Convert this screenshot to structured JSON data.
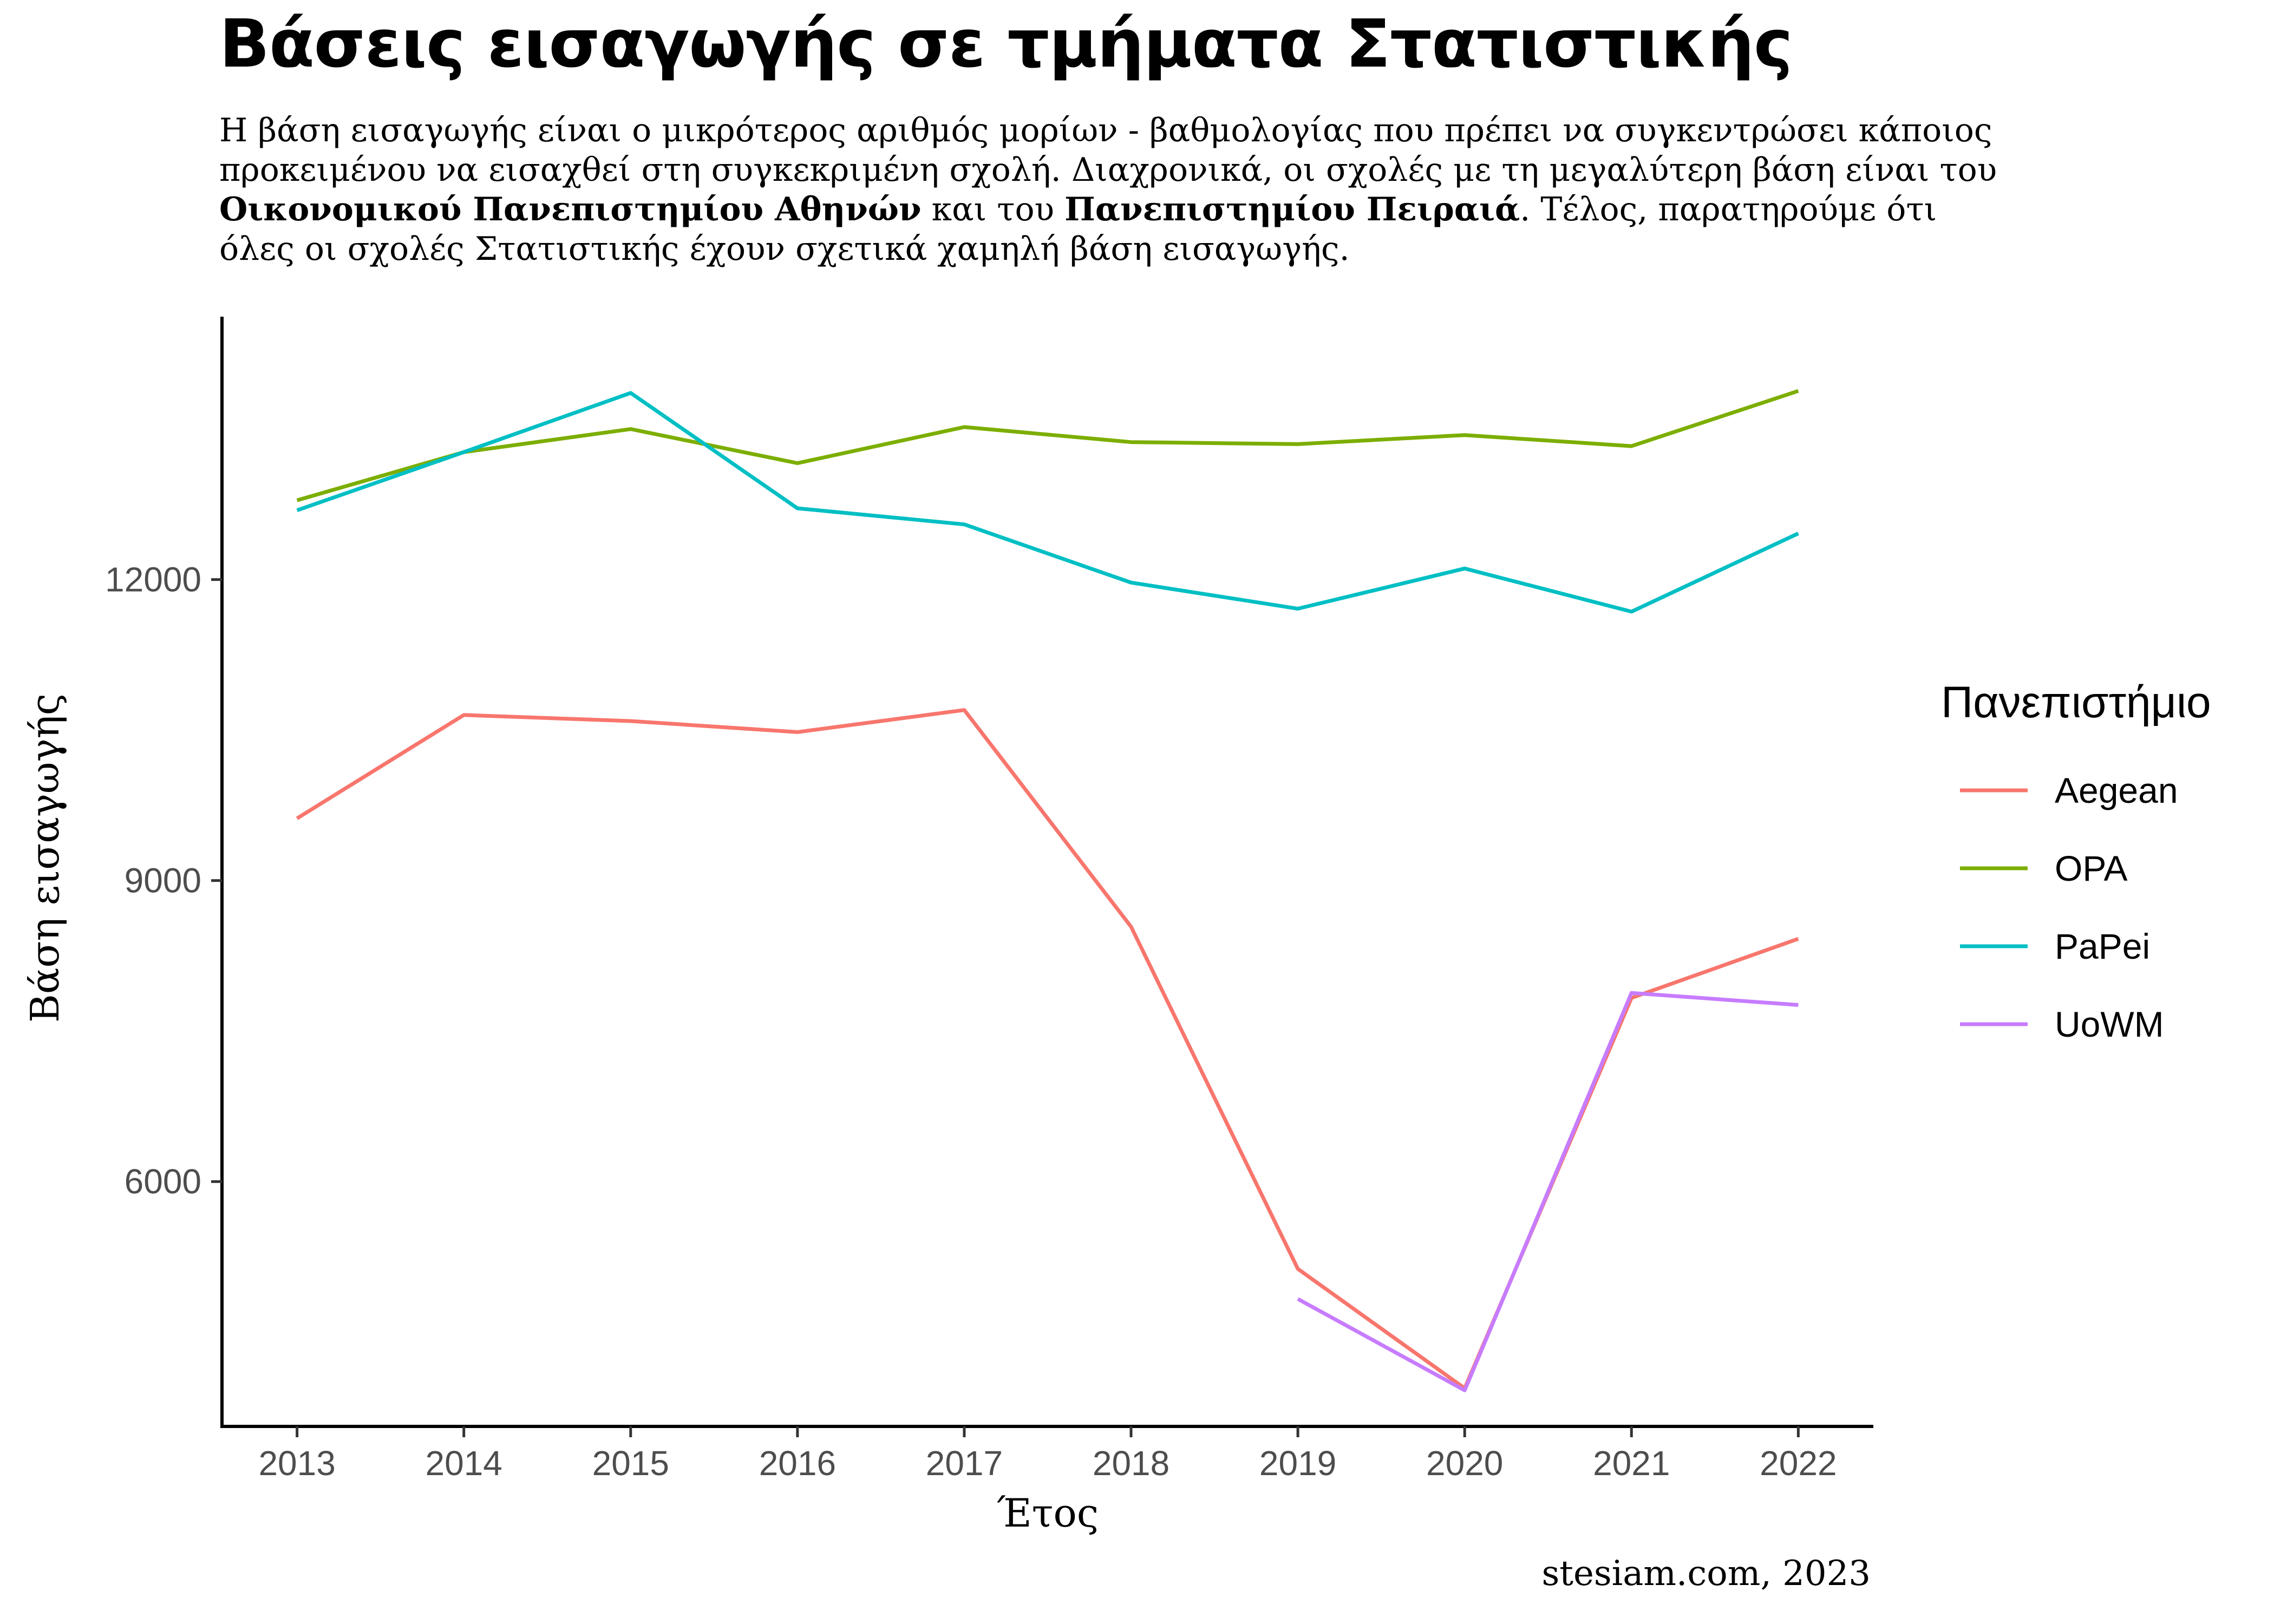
{
  "title": "Βάσεις εισαγωγής σε τμήματα Στατιστικής",
  "subtitle": {
    "part1": "Η βάση εισαγωγής είναι ο μικρότερος αριθμός μορίων - βαθμολογίας που πρέπει να συγκεντρώσει κάποιος προκειμένου να εισαχθεί στη συγκεκριμένη σχολή. Διαχρονικά, οι σχολές με τη μεγαλύτερη βάση είναι του ",
    "bold1": "Οικονομικού Πανεπιστημίου Αθηνών",
    "part2": " και του ",
    "bold2": "Πανεπιστημίου Πειραιά",
    "part3": ". Τέλος, παρατηρούμε ότι όλες οι σχολές Στατιστικής έχουν σχετικά χαμηλή βάση εισαγωγής."
  },
  "caption": "stesiam.com, 2023",
  "chart_data": {
    "type": "line",
    "xlabel": "Έτος",
    "ylabel": "Βάση εισαγωγής",
    "x": [
      2013,
      2014,
      2015,
      2016,
      2017,
      2018,
      2019,
      2020,
      2021,
      2022
    ],
    "xlim": [
      2012.55,
      2022.45
    ],
    "ylim": [
      3560,
      14620
    ],
    "yticks": [
      6000,
      9000,
      12000
    ],
    "legend_title": "Πανεπιστήμιο",
    "legend_position": "right",
    "grid": false,
    "series": [
      {
        "name": "Aegean",
        "color": "#F8766D",
        "values": [
          9620,
          10650,
          10590,
          10480,
          10700,
          8540,
          5130,
          3940,
          7830,
          8420
        ]
      },
      {
        "name": "OPA",
        "color": "#7CAE00",
        "values": [
          12790,
          13270,
          13500,
          13160,
          13520,
          13370,
          13350,
          13440,
          13330,
          13880
        ]
      },
      {
        "name": "PaPei",
        "color": "#00BFC4",
        "values": [
          12690,
          13270,
          13860,
          12710,
          12550,
          11970,
          11710,
          12110,
          11680,
          12460
        ]
      },
      {
        "name": "UoWM",
        "color": "#C77CFF",
        "values": [
          null,
          null,
          null,
          null,
          null,
          null,
          4830,
          3920,
          7880,
          7760
        ]
      }
    ]
  }
}
